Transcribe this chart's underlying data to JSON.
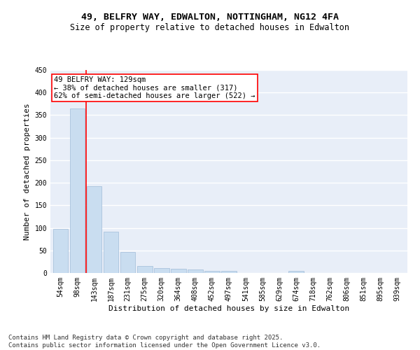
{
  "title": "49, BELFRY WAY, EDWALTON, NOTTINGHAM, NG12 4FA",
  "subtitle": "Size of property relative to detached houses in Edwalton",
  "xlabel": "Distribution of detached houses by size in Edwalton",
  "ylabel": "Number of detached properties",
  "categories": [
    "54sqm",
    "98sqm",
    "143sqm",
    "187sqm",
    "231sqm",
    "275sqm",
    "320sqm",
    "364sqm",
    "408sqm",
    "452sqm",
    "497sqm",
    "541sqm",
    "585sqm",
    "629sqm",
    "674sqm",
    "718sqm",
    "762sqm",
    "806sqm",
    "851sqm",
    "895sqm",
    "939sqm"
  ],
  "values": [
    98,
    365,
    193,
    92,
    46,
    15,
    11,
    10,
    8,
    5,
    5,
    0,
    0,
    0,
    4,
    0,
    0,
    0,
    0,
    0,
    0
  ],
  "bar_color": "#c9ddf0",
  "bar_edge_color": "#a0bcd8",
  "vline_x": 1.5,
  "vline_color": "red",
  "annotation_text": "49 BELFRY WAY: 129sqm\n← 38% of detached houses are smaller (317)\n62% of semi-detached houses are larger (522) →",
  "annotation_box_color": "white",
  "annotation_box_edgecolor": "red",
  "ylim": [
    0,
    450
  ],
  "yticks": [
    0,
    50,
    100,
    150,
    200,
    250,
    300,
    350,
    400,
    450
  ],
  "background_color": "#e8eef8",
  "grid_color": "white",
  "footer": "Contains HM Land Registry data © Crown copyright and database right 2025.\nContains public sector information licensed under the Open Government Licence v3.0.",
  "title_fontsize": 9.5,
  "subtitle_fontsize": 8.5,
  "xlabel_fontsize": 8,
  "ylabel_fontsize": 8,
  "tick_fontsize": 7,
  "annotation_fontsize": 7.5,
  "footer_fontsize": 6.5
}
